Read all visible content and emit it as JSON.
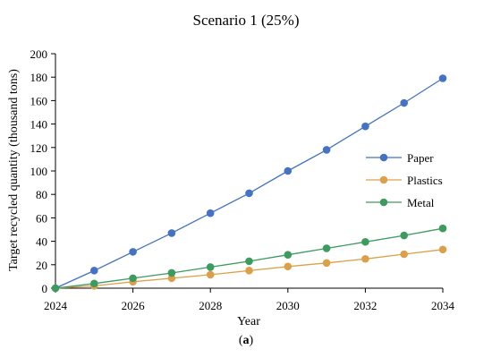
{
  "chart_data": {
    "type": "line",
    "title": "Scenario 1 (25%)",
    "xlabel": "Year",
    "ylabel": "Target recycled quantity (thousand tons)",
    "caption_prefix": "(",
    "caption_letter": "a",
    "caption_suffix": ")",
    "xlim": [
      2024,
      2034
    ],
    "ylim": [
      0,
      200
    ],
    "x_ticks": [
      2024,
      2026,
      2028,
      2030,
      2032,
      2034
    ],
    "y_ticks": [
      0,
      20,
      40,
      60,
      80,
      100,
      120,
      140,
      160,
      180,
      200
    ],
    "grid": false,
    "legend_position": "right",
    "x": [
      2024,
      2025,
      2026,
      2027,
      2028,
      2029,
      2030,
      2031,
      2032,
      2033,
      2034
    ],
    "series": [
      {
        "name": "Paper",
        "color": "#4472C4",
        "values": [
          0,
          15,
          31,
          47,
          64,
          81,
          100,
          118,
          138,
          158,
          179
        ]
      },
      {
        "name": "Plastics",
        "color": "#DDA04A",
        "values": [
          0,
          2,
          5.5,
          8.5,
          11.5,
          15,
          18.5,
          21.5,
          25,
          29,
          33
        ]
      },
      {
        "name": "Metal",
        "color": "#3C9B5F",
        "values": [
          0,
          4,
          8.5,
          13,
          18,
          23,
          28.5,
          34,
          39.5,
          45,
          51
        ]
      }
    ]
  }
}
